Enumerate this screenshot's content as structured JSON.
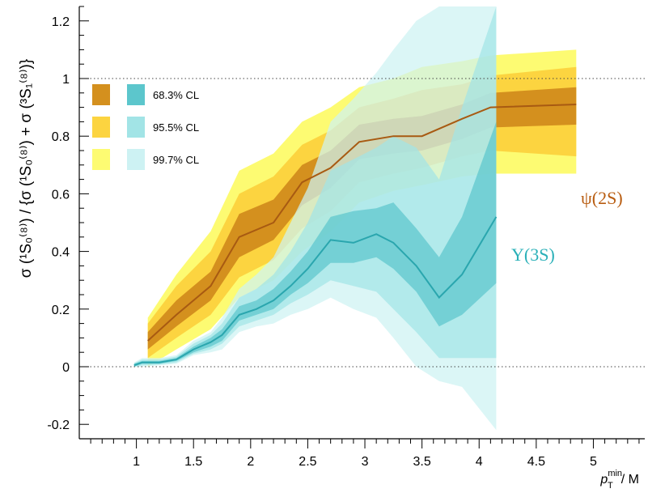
{
  "chart_data": {
    "type": "area",
    "xlabel": {
      "main": "p",
      "sub": "T",
      "sup": "min",
      "suffix": "/ M"
    },
    "ylabel": "σ (¹S₀⁽⁸⁾) / {σ (¹S₀⁽⁸⁾) + σ (³S₁⁽⁸⁾)}",
    "xlim": [
      0.5,
      5.45
    ],
    "ylim": [
      -0.25,
      1.25
    ],
    "x_ticks": [
      1,
      1.5,
      2,
      2.5,
      3,
      3.5,
      4,
      4.5,
      5
    ],
    "x_tick_labels": [
      "1",
      "1.5",
      "2",
      "2.5",
      "3",
      "3.5",
      "4",
      "4.5",
      "5"
    ],
    "y_ticks": [
      -0.2,
      0,
      0.2,
      0.4,
      0.6,
      0.8,
      1,
      1.2
    ],
    "y_tick_labels": [
      "-0.2",
      "0",
      "0.2",
      "0.4",
      "0.6",
      "0.8",
      "1",
      "1.2"
    ],
    "reference_lines": [
      0,
      1
    ],
    "legend": {
      "placement": "top-left",
      "entries": [
        {
          "label": "68.3% CL",
          "psi_color": "#d4901e",
          "ups_color": "#5cc6cc"
        },
        {
          "label": "95.5% CL",
          "psi_color": "#fcd440",
          "ups_color": "#a2e4e6"
        },
        {
          "label": "99.7% CL",
          "psi_color": "#fdfb72",
          "ups_color": "#cdf2f3"
        }
      ]
    },
    "series": [
      {
        "name": "ψ(2S)",
        "label_color": "#b85c10",
        "line_color": "#a85a12",
        "x": [
          1.1,
          1.35,
          1.65,
          1.9,
          2.2,
          2.45,
          2.7,
          2.95,
          3.25,
          3.5,
          3.85,
          4.1,
          4.85
        ],
        "center": [
          0.09,
          0.18,
          0.28,
          0.45,
          0.5,
          0.64,
          0.69,
          0.78,
          0.8,
          0.8,
          0.86,
          0.9,
          0.91
        ],
        "cl683": {
          "low": [
            0.06,
            0.14,
            0.23,
            0.38,
            0.44,
            0.56,
            0.62,
            0.72,
            0.74,
            0.75,
            0.79,
            0.83,
            0.84
          ],
          "high": [
            0.12,
            0.23,
            0.33,
            0.53,
            0.58,
            0.7,
            0.75,
            0.84,
            0.86,
            0.87,
            0.91,
            0.95,
            0.97
          ]
        },
        "cl955": {
          "low": [
            0.03,
            0.1,
            0.18,
            0.31,
            0.37,
            0.48,
            0.54,
            0.64,
            0.67,
            0.69,
            0.73,
            0.75,
            0.73
          ],
          "high": [
            0.15,
            0.28,
            0.4,
            0.6,
            0.66,
            0.77,
            0.82,
            0.9,
            0.93,
            0.96,
            0.98,
            1.01,
            1.04
          ]
        },
        "cl997": {
          "low": [
            0.0,
            0.06,
            0.13,
            0.24,
            0.3,
            0.4,
            0.47,
            0.57,
            0.61,
            0.63,
            0.66,
            0.67,
            0.67
          ],
          "high": [
            0.17,
            0.32,
            0.47,
            0.68,
            0.74,
            0.85,
            0.9,
            0.97,
            1.0,
            1.04,
            1.06,
            1.08,
            1.1
          ]
        }
      },
      {
        "name": "Υ(3S)",
        "label_color": "#2ab0b8",
        "line_color": "#2aa6ae",
        "x": [
          0.98,
          1.05,
          1.2,
          1.35,
          1.5,
          1.65,
          1.75,
          1.9,
          2.05,
          2.2,
          2.35,
          2.5,
          2.7,
          2.9,
          3.1,
          3.25,
          3.45,
          3.65,
          3.85,
          4.15
        ],
        "center": [
          0.005,
          0.015,
          0.015,
          0.025,
          0.06,
          0.085,
          0.11,
          0.18,
          0.2,
          0.23,
          0.28,
          0.34,
          0.44,
          0.43,
          0.46,
          0.43,
          0.35,
          0.24,
          0.32,
          0.52
        ],
        "cl683": {
          "low": [
            0.0,
            0.01,
            0.01,
            0.02,
            0.05,
            0.07,
            0.09,
            0.16,
            0.18,
            0.2,
            0.25,
            0.29,
            0.36,
            0.36,
            0.38,
            0.34,
            0.26,
            0.14,
            0.18,
            0.29
          ],
          "high": [
            0.01,
            0.02,
            0.02,
            0.03,
            0.07,
            0.1,
            0.13,
            0.21,
            0.23,
            0.27,
            0.33,
            0.4,
            0.52,
            0.54,
            0.55,
            0.57,
            0.48,
            0.38,
            0.52,
            0.85
          ]
        },
        "cl955": {
          "low": [
            0.0,
            0.005,
            0.008,
            0.015,
            0.045,
            0.06,
            0.08,
            0.14,
            0.16,
            0.18,
            0.22,
            0.25,
            0.3,
            0.28,
            0.26,
            0.2,
            0.12,
            0.03,
            0.03,
            0.03
          ],
          "high": [
            0.012,
            0.025,
            0.025,
            0.035,
            0.08,
            0.11,
            0.15,
            0.24,
            0.27,
            0.32,
            0.4,
            0.5,
            0.68,
            0.72,
            0.76,
            0.8,
            0.76,
            0.65,
            0.9,
            1.25
          ]
        },
        "cl997": {
          "low": [
            0.0,
            0.0,
            0.005,
            0.01,
            0.04,
            0.05,
            0.06,
            0.12,
            0.14,
            0.15,
            0.18,
            0.2,
            0.24,
            0.2,
            0.17,
            0.1,
            0.0,
            -0.05,
            -0.07,
            -0.22
          ],
          "high": [
            0.015,
            0.03,
            0.03,
            0.04,
            0.09,
            0.12,
            0.17,
            0.27,
            0.32,
            0.38,
            0.5,
            0.62,
            0.85,
            0.93,
            1.02,
            1.1,
            1.2,
            1.25,
            1.25,
            1.25
          ]
        }
      }
    ]
  }
}
